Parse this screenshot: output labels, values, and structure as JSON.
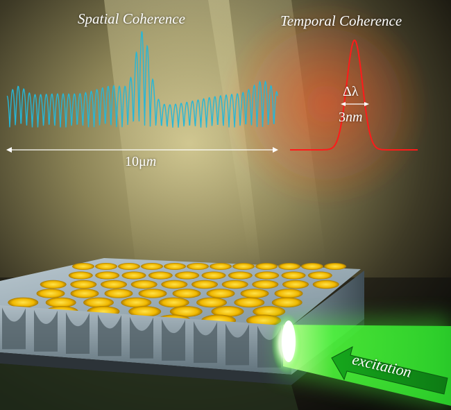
{
  "spatial_panel": {
    "title": "Spatial Coherence",
    "scale_number": "10μ",
    "scale_unit": "m"
  },
  "temporal_panel": {
    "title": "Temporal Coherence",
    "linewidth_symbol": "Δλ",
    "linewidth_number": "3",
    "linewidth_unit": "nm"
  },
  "excitation": {
    "label": "excitation"
  },
  "colors": {
    "interference_trace": "#25b7d8",
    "spectrum_trace": "#ff1a1a",
    "excitation_beam": "#3cff3c",
    "pores": "#ffd400",
    "membrane": "#8fa3ad",
    "annotation": "#ffffff"
  }
}
